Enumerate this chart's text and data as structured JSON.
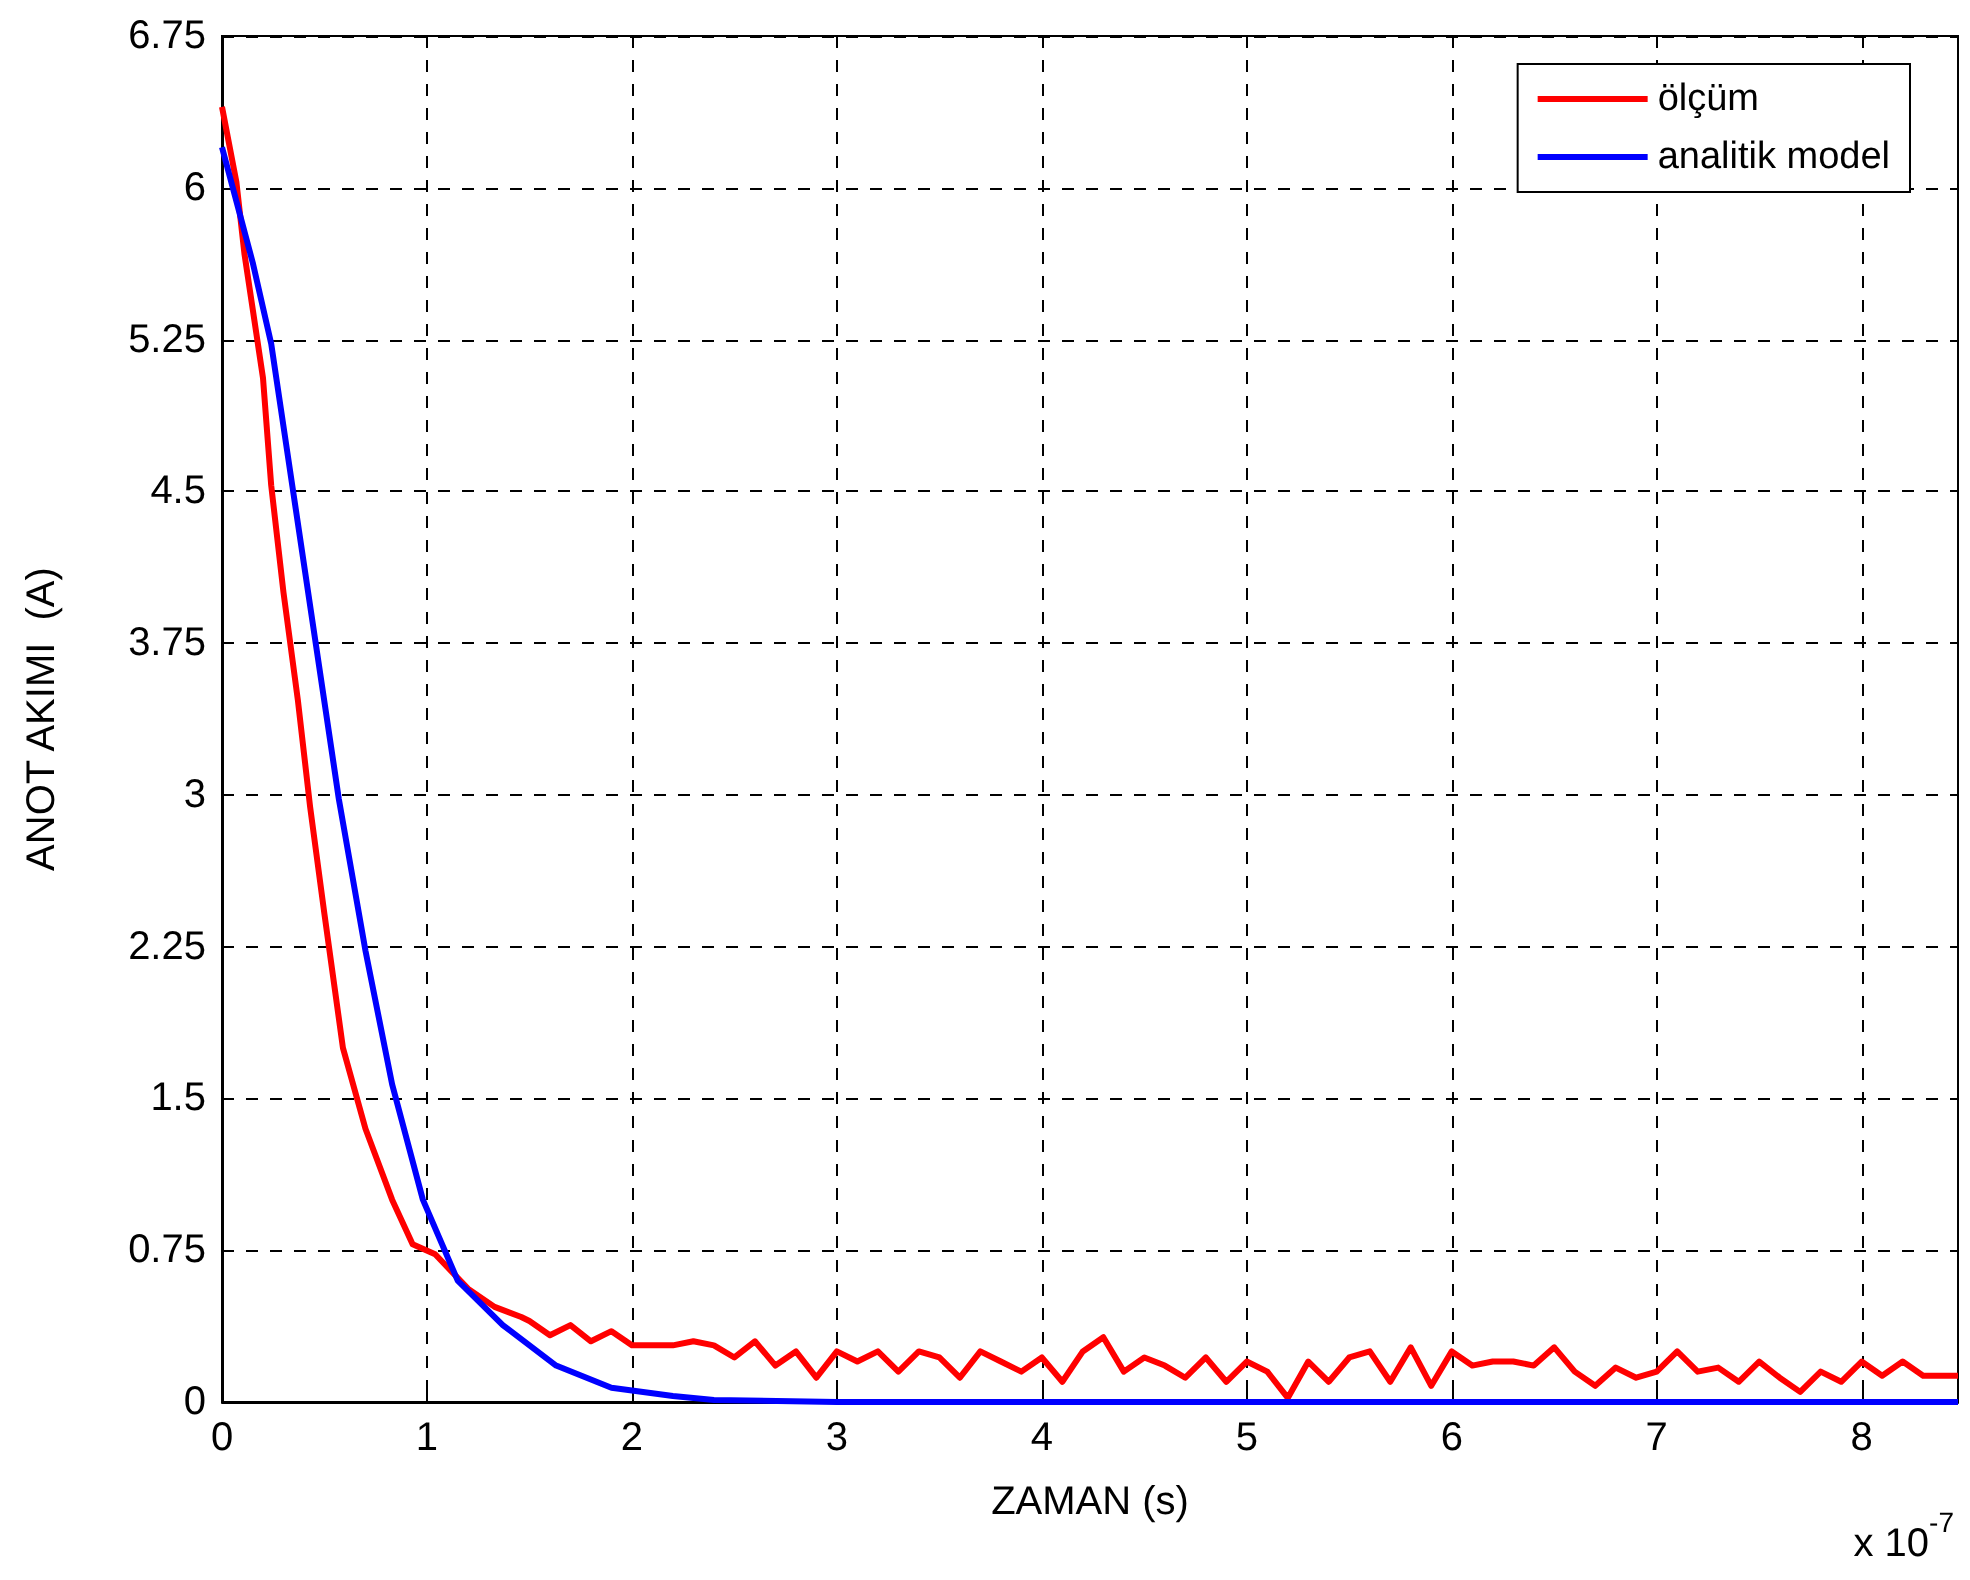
{
  "chart_data": {
    "type": "line",
    "xlabel": "ZAMAN (s)",
    "ylabel": "ANOT AKIMI  (A)",
    "annotations": [
      "x 10$^{-7}$"
    ],
    "xlim": [
      0,
      8.47
    ],
    "xticks": [
      0,
      1,
      2,
      3,
      4,
      5,
      6,
      7,
      8
    ],
    "ylim": [
      0,
      6.75
    ],
    "yticks": [
      0,
      0.75,
      1.5,
      2.25,
      3,
      3.75,
      4.5,
      5.25,
      6,
      6.75
    ],
    "grid": true,
    "legend": "top right",
    "series": [
      {
        "name": "ölçüm",
        "color": "#ff0000",
        "x": [
          0,
          0.07,
          0.11,
          0.2,
          0.24,
          0.3,
          0.37,
          0.43,
          0.5,
          0.59,
          0.7,
          0.83,
          0.93,
          1.04,
          1.2,
          1.33,
          1.46,
          1.5,
          1.6,
          1.7,
          1.8,
          1.9,
          2.0,
          2.1,
          2.2,
          2.3,
          2.4,
          2.5,
          2.6,
          2.7,
          2.8,
          2.9,
          3.0,
          3.1,
          3.2,
          3.3,
          3.4,
          3.5,
          3.6,
          3.7,
          3.8,
          3.9,
          4.0,
          4.1,
          4.2,
          4.3,
          4.4,
          4.5,
          4.6,
          4.7,
          4.8,
          4.9,
          5.0,
          5.1,
          5.2,
          5.3,
          5.4,
          5.5,
          5.6,
          5.7,
          5.8,
          5.9,
          6.0,
          6.1,
          6.2,
          6.3,
          6.4,
          6.5,
          6.6,
          6.7,
          6.8,
          6.9,
          7.0,
          7.1,
          7.2,
          7.3,
          7.4,
          7.5,
          7.6,
          7.7,
          7.8,
          7.9,
          8.0,
          8.1,
          8.2,
          8.3,
          8.4,
          8.47
        ],
        "values": [
          6.4,
          6.03,
          5.67,
          5.06,
          4.53,
          4.0,
          3.47,
          2.94,
          2.41,
          1.75,
          1.35,
          1.0,
          0.78,
          0.73,
          0.56,
          0.47,
          0.42,
          0.4,
          0.33,
          0.38,
          0.3,
          0.35,
          0.28,
          0.28,
          0.28,
          0.3,
          0.28,
          0.22,
          0.3,
          0.18,
          0.25,
          0.12,
          0.25,
          0.2,
          0.25,
          0.15,
          0.25,
          0.22,
          0.12,
          0.25,
          0.2,
          0.15,
          0.22,
          0.1,
          0.25,
          0.32,
          0.15,
          0.22,
          0.18,
          0.12,
          0.22,
          0.1,
          0.2,
          0.15,
          0.02,
          0.2,
          0.1,
          0.22,
          0.25,
          0.1,
          0.27,
          0.08,
          0.25,
          0.18,
          0.2,
          0.2,
          0.18,
          0.27,
          0.15,
          0.08,
          0.17,
          0.12,
          0.15,
          0.25,
          0.15,
          0.17,
          0.1,
          0.2,
          0.12,
          0.05,
          0.15,
          0.1,
          0.2,
          0.13,
          0.2,
          0.13,
          0.13,
          0.13
        ]
      },
      {
        "name": "analitik model",
        "color": "#0000ff",
        "x": [
          0,
          0.15,
          0.24,
          0.35,
          0.46,
          0.57,
          0.7,
          0.83,
          0.98,
          1.15,
          1.37,
          1.63,
          1.9,
          2.2,
          2.4,
          3,
          8.47
        ],
        "values": [
          6.2,
          5.63,
          5.23,
          4.48,
          3.73,
          2.98,
          2.23,
          1.57,
          1.0,
          0.6,
          0.38,
          0.18,
          0.07,
          0.03,
          0.01,
          0,
          0
        ]
      }
    ]
  }
}
